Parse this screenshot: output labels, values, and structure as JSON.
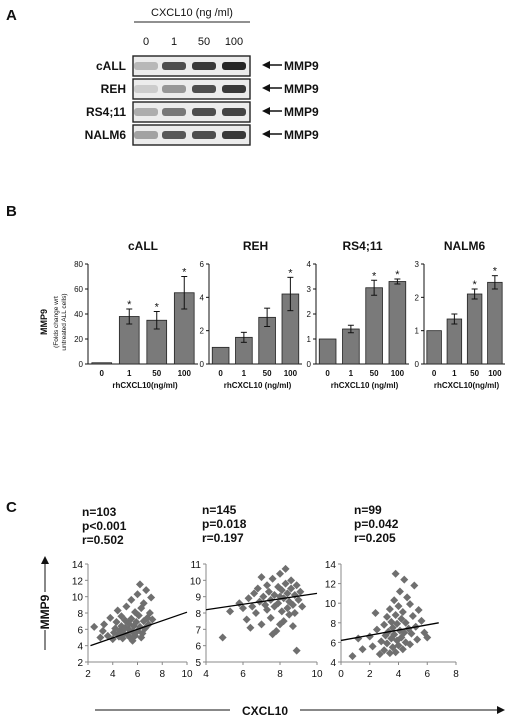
{
  "panel_labels": {
    "a": "A",
    "b": "B",
    "c": "C"
  },
  "blot": {
    "treatment_label": "CXCL10 (ng /ml)",
    "doses": [
      "0",
      "1",
      "50",
      "100"
    ],
    "rows": [
      {
        "cell_line": "cALL",
        "marker": "MMP9"
      },
      {
        "cell_line": "REH",
        "marker": "MMP9"
      },
      {
        "cell_line": "RS4;11",
        "marker": "MMP9"
      },
      {
        "cell_line": "NALM6",
        "marker": "MMP9"
      }
    ]
  },
  "bar_ylabel": {
    "main": "MMP9",
    "sub1": "(Folds change wrt",
    "sub2": "untreated ALL cells)"
  },
  "scatter": {
    "ylabel": "MMP9",
    "xlabel": "CXCL10"
  },
  "chart_data": [
    {
      "type": "bar",
      "title": "cALL",
      "categories": [
        "0",
        "1",
        "50",
        "100"
      ],
      "values": [
        1,
        38,
        35,
        57
      ],
      "errors": [
        0,
        6,
        7,
        13
      ],
      "significant": [
        false,
        true,
        true,
        true
      ],
      "ylim": [
        0,
        80
      ],
      "yticks": [
        0,
        20,
        40,
        60,
        80
      ],
      "xlabel": "rhCXCL10(ng/ml)",
      "color": "#7a7a7a"
    },
    {
      "type": "bar",
      "title": "REH",
      "categories": [
        "0",
        "1",
        "50",
        "100"
      ],
      "values": [
        1,
        1.6,
        2.8,
        4.2
      ],
      "errors": [
        0,
        0.3,
        0.55,
        1.0
      ],
      "significant": [
        false,
        false,
        false,
        true
      ],
      "ylim": [
        0,
        6
      ],
      "yticks": [
        0,
        2,
        4,
        6
      ],
      "xlabel": "rhCXCL10 (ng/ml)",
      "color": "#7a7a7a"
    },
    {
      "type": "bar",
      "title": "RS4;11",
      "categories": [
        "0",
        "1",
        "50",
        "100"
      ],
      "values": [
        1,
        1.4,
        3.05,
        3.3
      ],
      "errors": [
        0,
        0.15,
        0.3,
        0.1
      ],
      "significant": [
        false,
        false,
        true,
        true
      ],
      "ylim": [
        0,
        4
      ],
      "yticks": [
        0,
        1,
        2,
        3,
        4
      ],
      "xlabel": "rhCXCL10 (ng/ml)",
      "color": "#7a7a7a"
    },
    {
      "type": "bar",
      "title": "NALM6",
      "categories": [
        "0",
        "1",
        "50",
        "100"
      ],
      "values": [
        1,
        1.35,
        2.1,
        2.45
      ],
      "errors": [
        0,
        0.15,
        0.15,
        0.2
      ],
      "significant": [
        false,
        false,
        true,
        true
      ],
      "ylim": [
        0,
        3
      ],
      "yticks": [
        0,
        1,
        2,
        3
      ],
      "xlabel": "rhCXCL10(ng/ml)",
      "color": "#7a7a7a"
    },
    {
      "type": "scatter",
      "stats": [
        "n=103",
        "p<0.001",
        "r=0.502"
      ],
      "xlim": [
        2,
        10
      ],
      "ylim": [
        2,
        14
      ],
      "xticks": [
        2,
        4,
        6,
        8,
        10
      ],
      "yticks": [
        2,
        4,
        6,
        8,
        10,
        12,
        14
      ],
      "trend": [
        [
          2.2,
          4.0
        ],
        [
          10,
          8.1
        ]
      ],
      "points": [
        [
          2.5,
          6.3
        ],
        [
          3.0,
          5.0
        ],
        [
          3.2,
          5.8
        ],
        [
          3.3,
          6.6
        ],
        [
          3.6,
          5.2
        ],
        [
          3.8,
          7.4
        ],
        [
          4.0,
          4.8
        ],
        [
          4.1,
          5.6
        ],
        [
          4.2,
          6.1
        ],
        [
          4.3,
          6.9
        ],
        [
          4.4,
          8.3
        ],
        [
          4.5,
          5.1
        ],
        [
          4.6,
          5.9
        ],
        [
          4.7,
          6.4
        ],
        [
          4.7,
          7.6
        ],
        [
          4.8,
          4.9
        ],
        [
          4.9,
          5.5
        ],
        [
          5.0,
          6.2
        ],
        [
          5.0,
          7.1
        ],
        [
          5.1,
          8.8
        ],
        [
          5.2,
          5.3
        ],
        [
          5.3,
          6.0
        ],
        [
          5.3,
          6.7
        ],
        [
          5.4,
          5.0
        ],
        [
          5.5,
          7.3
        ],
        [
          5.5,
          9.6
        ],
        [
          5.6,
          5.7
        ],
        [
          5.7,
          6.4
        ],
        [
          5.8,
          8.1
        ],
        [
          5.8,
          5.2
        ],
        [
          5.9,
          6.9
        ],
        [
          6.0,
          10.3
        ],
        [
          6.0,
          5.8
        ],
        [
          6.1,
          7.7
        ],
        [
          6.2,
          6.3
        ],
        [
          6.2,
          11.5
        ],
        [
          6.3,
          8.6
        ],
        [
          6.4,
          5.5
        ],
        [
          6.5,
          7.0
        ],
        [
          6.5,
          9.2
        ],
        [
          6.6,
          6.1
        ],
        [
          6.7,
          10.8
        ],
        [
          6.8,
          7.4
        ],
        [
          6.9,
          6.6
        ],
        [
          7.0,
          8.0
        ],
        [
          7.1,
          9.9
        ],
        [
          7.2,
          7.2
        ],
        [
          5.6,
          4.6
        ],
        [
          4.4,
          5.4
        ],
        [
          6.3,
          5.0
        ]
      ],
      "color": "#6f6f6f"
    },
    {
      "type": "scatter",
      "stats": [
        "n=145",
        "p=0.018",
        "r=0.197"
      ],
      "xlim": [
        4,
        10
      ],
      "ylim": [
        5,
        11
      ],
      "xticks": [
        4,
        6,
        8,
        10
      ],
      "yticks": [
        5,
        6,
        7,
        8,
        9,
        10,
        11
      ],
      "trend": [
        [
          4,
          8.2
        ],
        [
          10,
          9.2
        ]
      ],
      "points": [
        [
          4.9,
          6.5
        ],
        [
          5.3,
          8.1
        ],
        [
          5.8,
          8.6
        ],
        [
          6.0,
          8.3
        ],
        [
          6.2,
          7.6
        ],
        [
          6.3,
          8.9
        ],
        [
          6.5,
          8.4
        ],
        [
          6.6,
          9.2
        ],
        [
          6.7,
          8.0
        ],
        [
          6.8,
          9.5
        ],
        [
          6.9,
          8.7
        ],
        [
          7.0,
          7.3
        ],
        [
          7.1,
          9.0
        ],
        [
          7.2,
          8.5
        ],
        [
          7.3,
          9.7
        ],
        [
          7.3,
          8.2
        ],
        [
          7.4,
          9.3
        ],
        [
          7.5,
          8.8
        ],
        [
          7.5,
          7.7
        ],
        [
          7.6,
          10.1
        ],
        [
          7.7,
          9.1
        ],
        [
          7.7,
          8.4
        ],
        [
          7.8,
          6.9
        ],
        [
          7.9,
          9.6
        ],
        [
          7.9,
          8.6
        ],
        [
          8.0,
          9.0
        ],
        [
          8.0,
          10.4
        ],
        [
          8.1,
          8.1
        ],
        [
          8.1,
          9.4
        ],
        [
          8.2,
          7.5
        ],
        [
          8.2,
          8.9
        ],
        [
          8.3,
          10.7
        ],
        [
          8.3,
          9.8
        ],
        [
          8.4,
          8.3
        ],
        [
          8.4,
          9.2
        ],
        [
          8.5,
          7.9
        ],
        [
          8.5,
          8.7
        ],
        [
          8.6,
          10.0
        ],
        [
          8.6,
          9.5
        ],
        [
          8.7,
          8.5
        ],
        [
          8.7,
          7.2
        ],
        [
          8.8,
          9.1
        ],
        [
          8.8,
          8.0
        ],
        [
          8.9,
          9.7
        ],
        [
          8.9,
          5.7
        ],
        [
          9.0,
          8.8
        ],
        [
          9.1,
          9.3
        ],
        [
          9.2,
          8.4
        ],
        [
          6.4,
          7.1
        ],
        [
          7.0,
          10.2
        ],
        [
          7.6,
          6.7
        ],
        [
          8.0,
          7.3
        ]
      ],
      "color": "#6f6f6f"
    },
    {
      "type": "scatter",
      "stats": [
        "n=99",
        "p=0.042",
        "r=0.205"
      ],
      "xlim": [
        0,
        8
      ],
      "ylim": [
        4,
        14
      ],
      "xticks": [
        0,
        2,
        4,
        6,
        8
      ],
      "yticks": [
        4,
        6,
        8,
        10,
        12,
        14
      ],
      "trend": [
        [
          0,
          6.2
        ],
        [
          6.8,
          8.0
        ]
      ],
      "points": [
        [
          0.8,
          4.6
        ],
        [
          1.2,
          6.4
        ],
        [
          1.5,
          5.3
        ],
        [
          2.0,
          6.6
        ],
        [
          2.2,
          5.6
        ],
        [
          2.5,
          7.3
        ],
        [
          2.7,
          4.8
        ],
        [
          2.8,
          6.1
        ],
        [
          3.0,
          7.8
        ],
        [
          3.0,
          5.2
        ],
        [
          3.1,
          6.7
        ],
        [
          3.2,
          8.6
        ],
        [
          3.2,
          5.9
        ],
        [
          3.3,
          7.1
        ],
        [
          3.4,
          4.9
        ],
        [
          3.4,
          9.4
        ],
        [
          3.5,
          6.4
        ],
        [
          3.5,
          8.1
        ],
        [
          3.6,
          5.5
        ],
        [
          3.6,
          7.5
        ],
        [
          3.7,
          10.3
        ],
        [
          3.7,
          6.8
        ],
        [
          3.8,
          5.0
        ],
        [
          3.8,
          8.8
        ],
        [
          3.9,
          6.2
        ],
        [
          3.9,
          7.9
        ],
        [
          4.0,
          9.7
        ],
        [
          4.0,
          5.7
        ],
        [
          4.1,
          7.2
        ],
        [
          4.1,
          11.2
        ],
        [
          4.2,
          6.5
        ],
        [
          4.2,
          8.4
        ],
        [
          4.3,
          5.3
        ],
        [
          4.3,
          9.1
        ],
        [
          4.4,
          7.0
        ],
        [
          4.4,
          12.4
        ],
        [
          4.5,
          6.0
        ],
        [
          4.5,
          8.0
        ],
        [
          4.6,
          10.6
        ],
        [
          4.7,
          7.4
        ],
        [
          4.8,
          5.8
        ],
        [
          4.8,
          9.9
        ],
        [
          4.9,
          6.9
        ],
        [
          5.0,
          8.7
        ],
        [
          5.1,
          11.8
        ],
        [
          5.2,
          7.6
        ],
        [
          5.3,
          6.3
        ],
        [
          5.4,
          9.3
        ],
        [
          5.6,
          8.2
        ],
        [
          5.8,
          7.0
        ],
        [
          6.0,
          6.5
        ],
        [
          3.8,
          13.0
        ],
        [
          2.4,
          9.0
        ]
      ],
      "color": "#6f6f6f"
    }
  ]
}
